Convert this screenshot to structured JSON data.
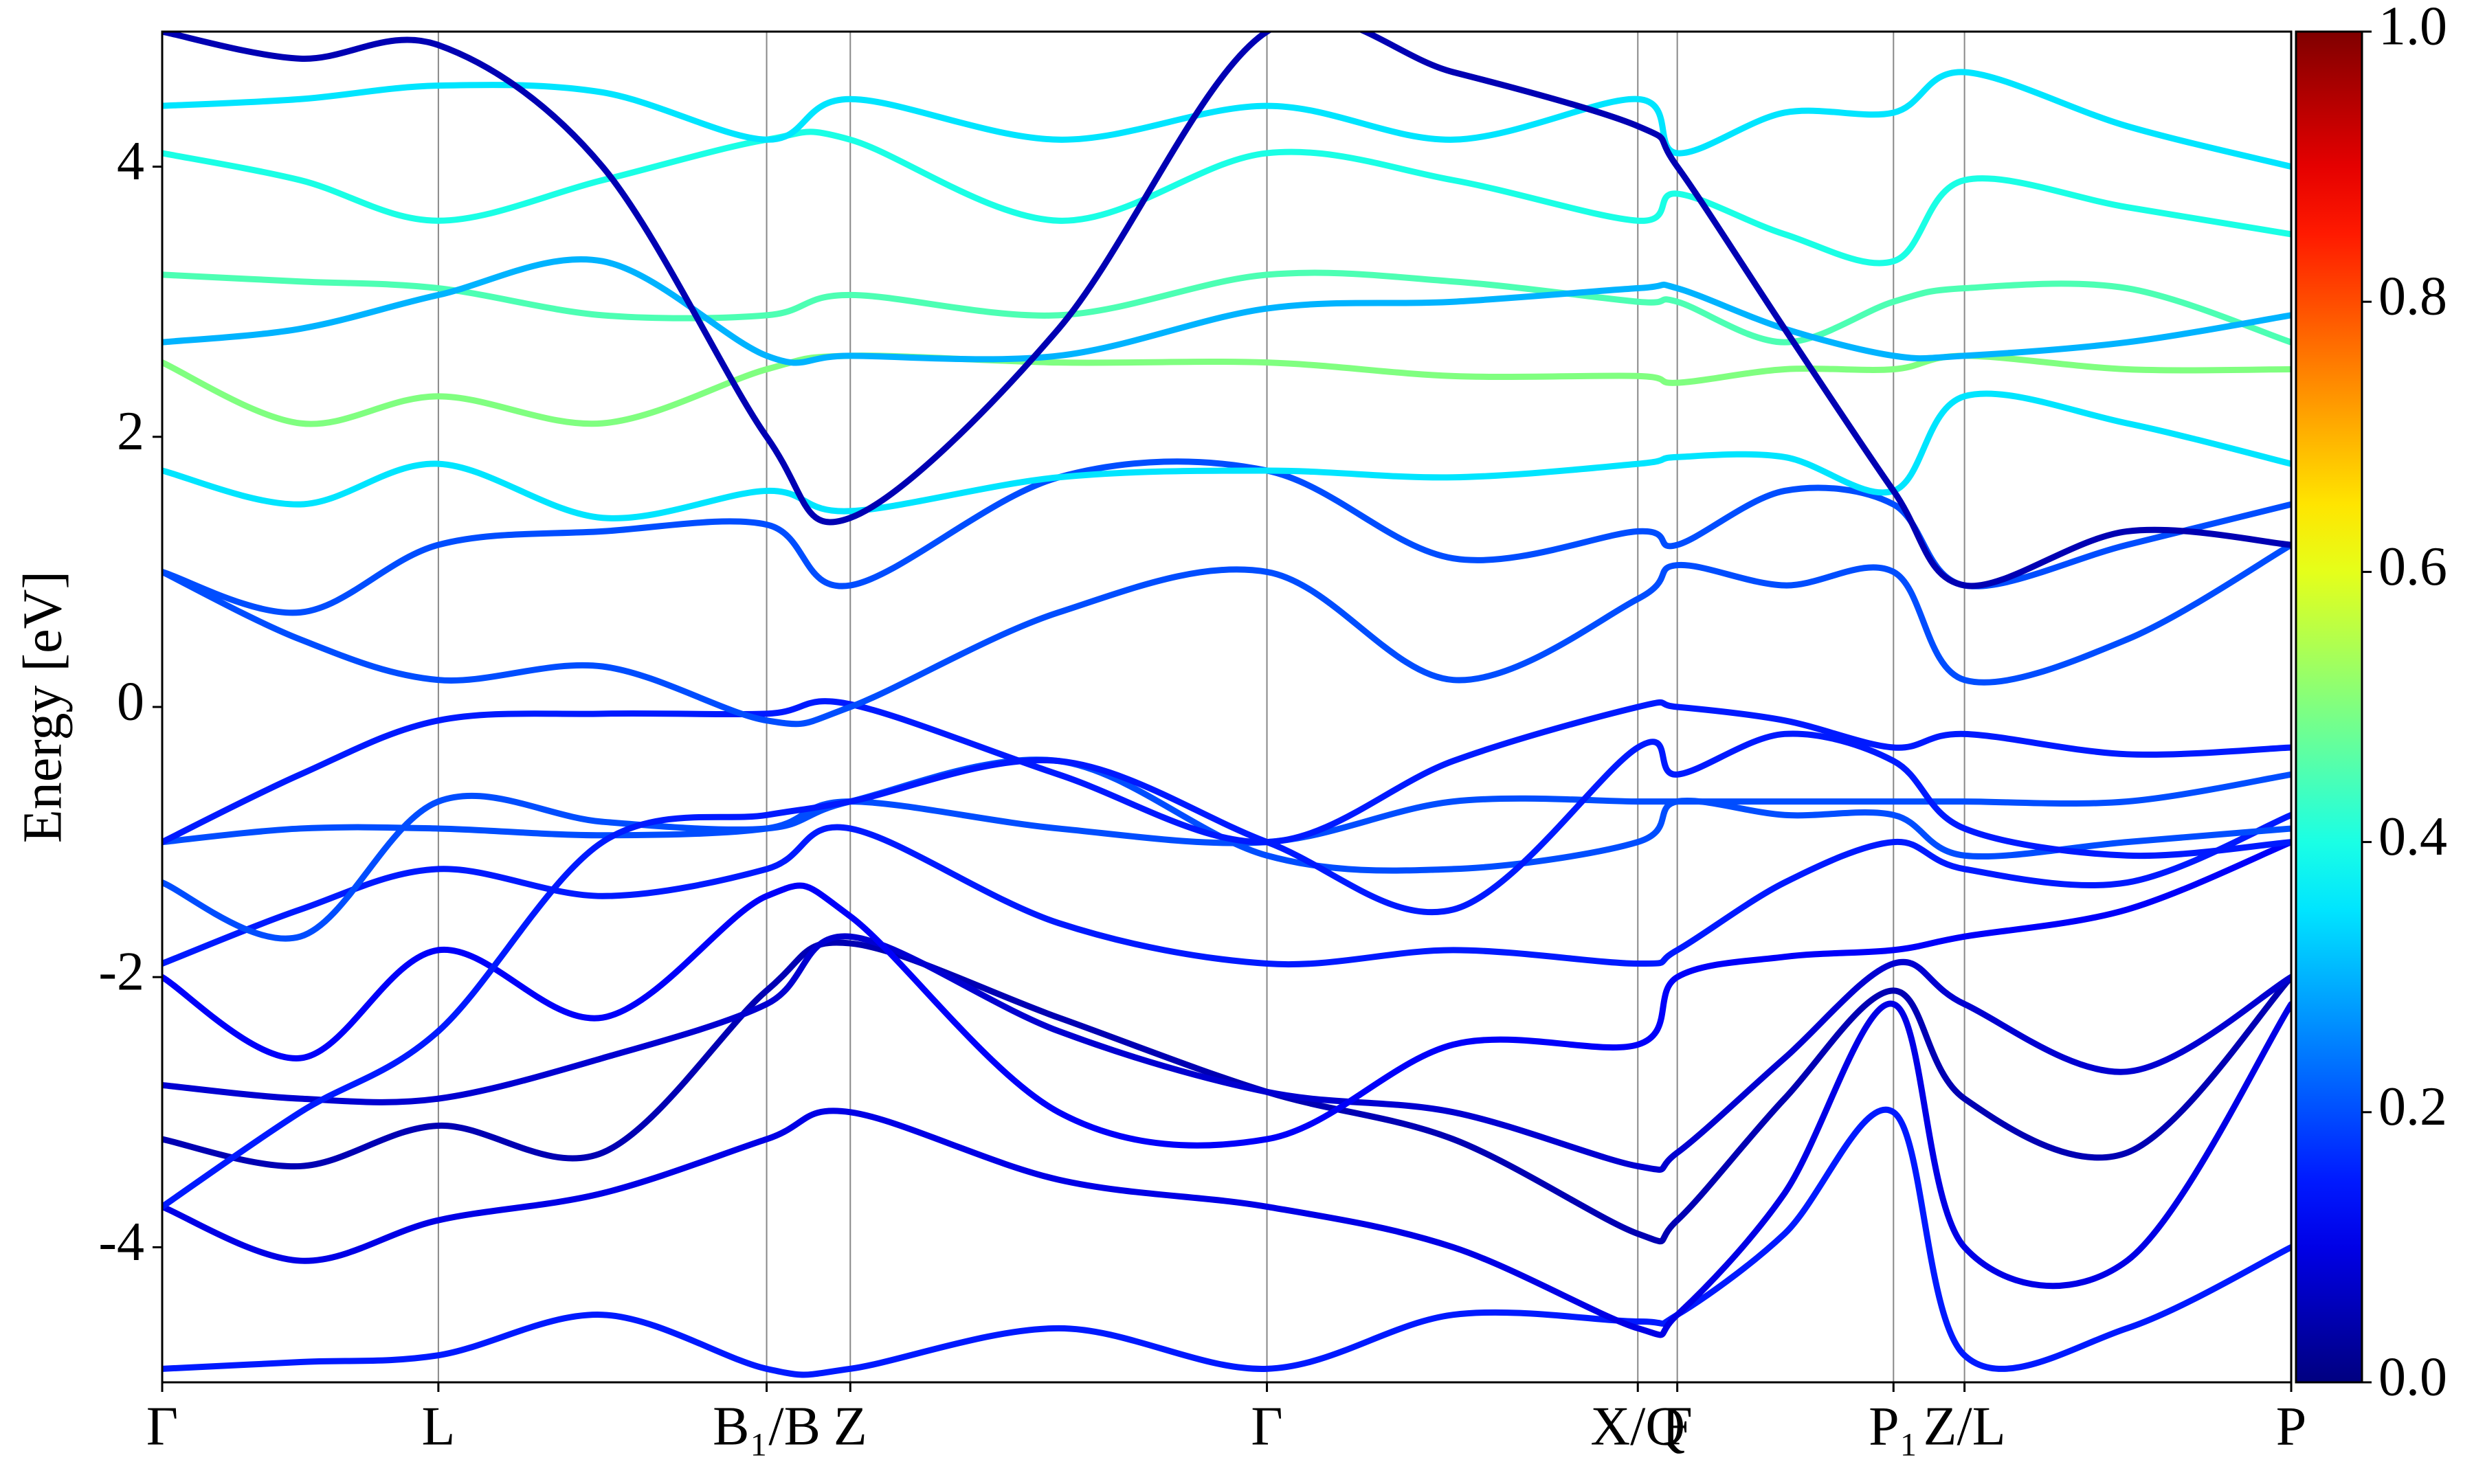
{
  "chart_data": {
    "type": "line",
    "y_label": "Energy [eV]",
    "x": [
      0,
      0.875,
      1.75,
      2.79,
      3.83,
      4.36,
      5.68,
      7.0,
      8.18,
      9.35,
      9.6,
      10.28,
      10.97,
      11.42,
      12.45,
      13.49
    ],
    "xlim": [
      0,
      13.49
    ],
    "xticks": [
      {
        "value": 0,
        "label": "Γ"
      },
      {
        "value": 1.75,
        "label": "L"
      },
      {
        "value": 3.83,
        "label": "B₁/B"
      },
      {
        "value": 4.36,
        "label": "Z"
      },
      {
        "value": 7.0,
        "label": "Γ"
      },
      {
        "value": 9.35,
        "label": "X/Q"
      },
      {
        "value": 9.6,
        "label": "F"
      },
      {
        "value": 10.97,
        "label": "P₁"
      },
      {
        "value": 11.42,
        "label": "Z/L"
      },
      {
        "value": 13.49,
        "label": "P"
      }
    ],
    "ylim": [
      -5,
      5
    ],
    "yticks": [
      -4,
      -2,
      0,
      2,
      4
    ],
    "colormap": "jet",
    "clim": [
      0,
      1
    ],
    "cticks": [
      {
        "value": 0,
        "label": "0.0"
      },
      0.2,
      0.4,
      0.6,
      0.8,
      {
        "value": 1,
        "label": "1.0"
      }
    ],
    "series": [
      {
        "weight": 0.15,
        "values": [
          -4.9,
          -4.85,
          -4.8,
          -4.5,
          -4.9,
          -4.9,
          -4.6,
          -4.9,
          -4.5,
          -4.55,
          -4.5,
          -3.9,
          -3.0,
          -4.8,
          -4.6,
          -4.0
        ]
      },
      {
        "weight": 0.1,
        "values": [
          -3.7,
          -4.1,
          -3.8,
          -3.6,
          -3.2,
          -3.0,
          -3.5,
          -3.7,
          -4.0,
          -4.6,
          -4.5,
          -3.6,
          -2.2,
          -4.0,
          -4.1,
          -2.2
        ]
      },
      {
        "weight": 0.05,
        "values": [
          -3.2,
          -3.4,
          -3.1,
          -3.3,
          -2.1,
          -1.75,
          -2.3,
          -2.85,
          -3.2,
          -3.9,
          -3.8,
          -2.9,
          -2.1,
          -2.9,
          -3.3,
          -2.0
        ]
      },
      {
        "weight": 0.08,
        "values": [
          -2.8,
          -2.9,
          -2.9,
          -2.6,
          -2.2,
          -1.7,
          -2.4,
          -2.85,
          -3.0,
          -3.4,
          -3.3,
          -2.6,
          -1.9,
          -2.2,
          -2.7,
          -2.0
        ]
      },
      {
        "weight": 0.12,
        "values": [
          -2.0,
          -2.6,
          -1.8,
          -2.3,
          -1.4,
          -1.55,
          -3.0,
          -3.2,
          -2.5,
          -2.5,
          -2.0,
          -1.85,
          -1.8,
          -1.7,
          -1.5,
          -1.0
        ]
      },
      {
        "weight": 0.15,
        "values": [
          -1.9,
          -1.5,
          -1.2,
          -1.4,
          -1.2,
          -0.9,
          -1.6,
          -1.9,
          -1.8,
          -1.9,
          -1.8,
          -1.3,
          -1.0,
          -1.2,
          -1.3,
          -0.8
        ]
      },
      {
        "weight": 0.2,
        "values": [
          -1.3,
          -1.7,
          -0.7,
          -0.85,
          -0.9,
          -0.7,
          -0.4,
          -1.1,
          -1.2,
          -1.0,
          -0.7,
          -0.8,
          -0.8,
          -1.1,
          -1.0,
          -0.9
        ]
      },
      {
        "weight": 0.2,
        "values": [
          -1.0,
          -0.9,
          -0.9,
          -0.95,
          -0.9,
          -0.7,
          -0.9,
          -1.0,
          -0.7,
          -0.7,
          -0.7,
          -0.7,
          -0.7,
          -0.7,
          -0.7,
          -0.5
        ]
      },
      {
        "weight": 0.15,
        "values": [
          -1.0,
          -0.5,
          -0.1,
          -0.05,
          -0.05,
          0.02,
          -0.5,
          -1.0,
          -0.4,
          0.0,
          0.0,
          -0.1,
          -0.3,
          -0.2,
          -0.35,
          -0.3
        ]
      },
      {
        "weight": 0.2,
        "values": [
          1.0,
          0.5,
          0.2,
          0.3,
          -0.1,
          0.0,
          0.7,
          1.0,
          0.2,
          0.8,
          1.05,
          0.9,
          1.0,
          0.2,
          0.5,
          1.2
        ]
      },
      {
        "weight": 0.2,
        "values": [
          1.0,
          0.7,
          1.2,
          1.3,
          1.35,
          0.9,
          1.7,
          1.75,
          1.1,
          1.3,
          1.2,
          1.6,
          1.5,
          0.9,
          1.2,
          1.5
        ]
      },
      {
        "weight": 0.35,
        "values": [
          1.75,
          1.5,
          1.8,
          1.4,
          1.6,
          1.45,
          1.7,
          1.75,
          1.7,
          1.8,
          1.85,
          1.85,
          1.6,
          2.3,
          2.1,
          1.8
        ]
      },
      {
        "weight": 0.5,
        "values": [
          2.55,
          2.1,
          2.3,
          2.1,
          2.5,
          2.6,
          2.55,
          2.55,
          2.45,
          2.45,
          2.4,
          2.5,
          2.5,
          2.6,
          2.5,
          2.5
        ]
      },
      {
        "weight": 0.45,
        "values": [
          3.2,
          3.15,
          3.1,
          2.9,
          2.9,
          3.05,
          2.9,
          3.2,
          3.15,
          3.0,
          3.0,
          2.7,
          3.0,
          3.1,
          3.1,
          2.7
        ]
      },
      {
        "weight": 0.3,
        "values": [
          2.7,
          2.8,
          3.05,
          3.3,
          2.6,
          2.6,
          2.6,
          2.95,
          3.0,
          3.1,
          3.1,
          2.8,
          2.6,
          2.6,
          2.7,
          2.9
        ]
      },
      {
        "weight": 0.4,
        "values": [
          4.1,
          3.9,
          3.6,
          3.9,
          4.2,
          4.2,
          3.6,
          4.1,
          3.9,
          3.6,
          3.8,
          3.5,
          3.3,
          3.9,
          3.7,
          3.5
        ]
      },
      {
        "weight": 0.35,
        "values": [
          4.45,
          4.5,
          4.6,
          4.55,
          4.2,
          4.5,
          4.2,
          4.45,
          4.2,
          4.5,
          4.1,
          4.4,
          4.4,
          4.7,
          4.3,
          4.0
        ]
      },
      {
        "weight": 0.05,
        "values": [
          5.0,
          4.8,
          4.9,
          4.0,
          2.0,
          1.4,
          2.8,
          5.0,
          4.7,
          4.3,
          4.0,
          2.8,
          1.6,
          0.9,
          1.3,
          1.2
        ]
      },
      {
        "weight": 0.15,
        "values": [
          -3.7,
          -3.0,
          -2.4,
          -1.0,
          -0.8,
          -0.7,
          -0.4,
          -1.0,
          -1.5,
          -0.3,
          -0.5,
          -0.2,
          -0.4,
          -0.9,
          -1.1,
          -1.0
        ]
      }
    ]
  }
}
